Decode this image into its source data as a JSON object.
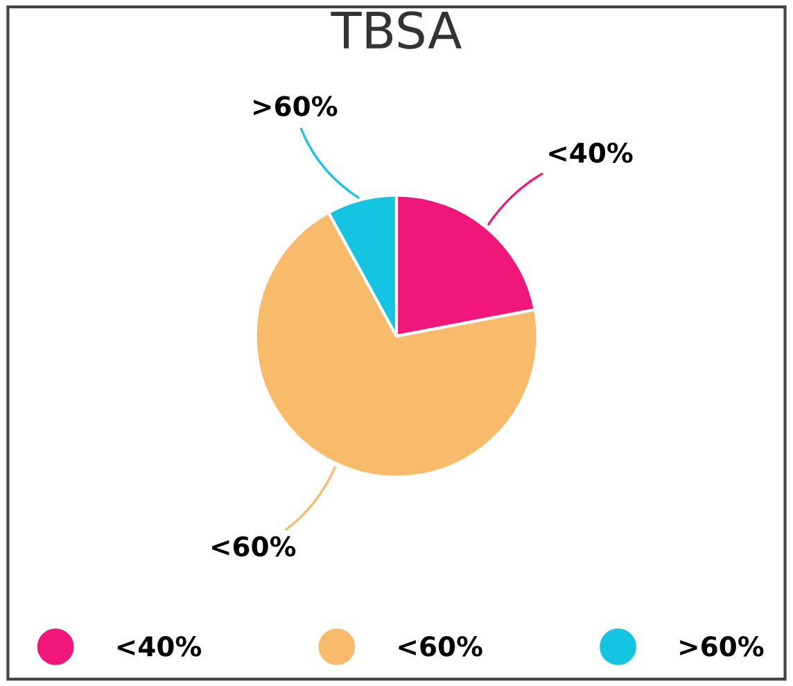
{
  "chart_data": {
    "type": "pie",
    "title": "TBSA",
    "categories": [
      "<40%",
      "<60%",
      ">60%"
    ],
    "values": [
      22,
      70,
      8
    ],
    "colors": [
      "#f0167a",
      "#f8bb6c",
      "#14c4e0"
    ],
    "legend": "bottom"
  }
}
